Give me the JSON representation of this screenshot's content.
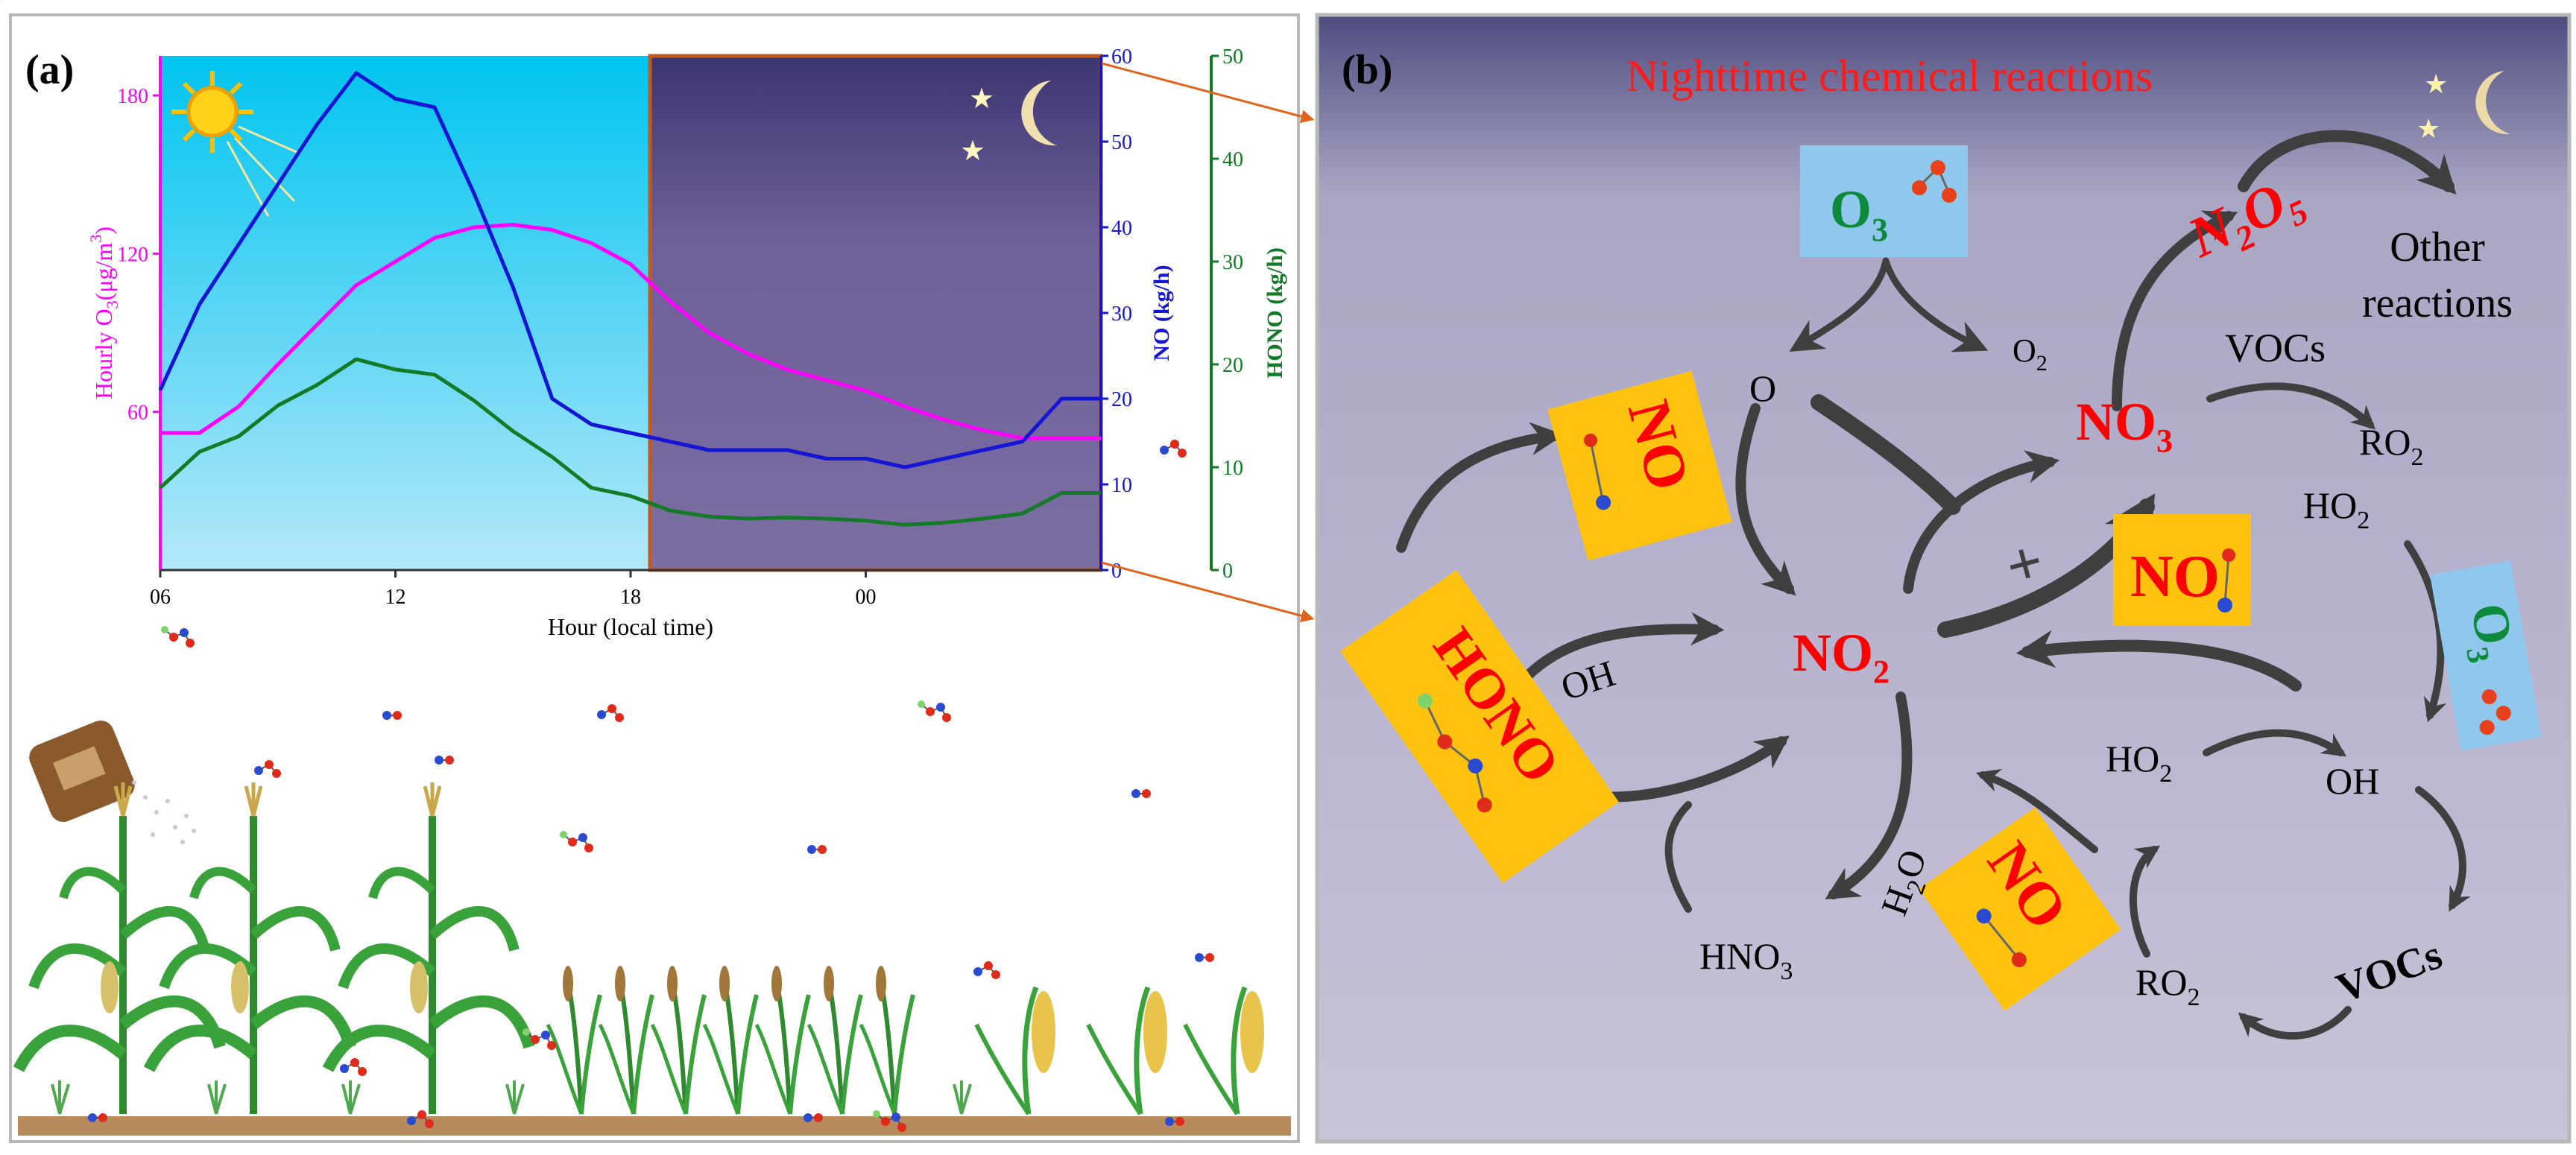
{
  "panel_a": {
    "label": "(a)",
    "chart_data": {
      "type": "line",
      "x": [
        "06",
        "07",
        "08",
        "09",
        "10",
        "11",
        "12",
        "13",
        "14",
        "15",
        "16",
        "17",
        "18",
        "19",
        "20",
        "21",
        "22",
        "23",
        "00",
        "01",
        "02",
        "03",
        "04",
        "05"
      ],
      "xticks": [
        "06",
        "12",
        "18",
        "00"
      ],
      "xlabel": "Hour (local time)",
      "series": [
        {
          "name": "Hourly O3",
          "axis": "left",
          "color": "#ff00ff",
          "values": [
            52,
            52,
            62,
            78,
            93,
            108,
            117,
            126,
            130,
            131,
            129,
            124,
            116,
            102,
            90,
            82,
            76,
            72,
            68,
            62,
            57,
            53,
            50,
            50
          ]
        },
        {
          "name": "NO",
          "axis": "right1",
          "color": "#1515d6",
          "values": [
            21,
            31,
            38,
            45,
            52,
            58,
            55,
            54,
            44,
            33,
            20,
            17,
            16,
            15,
            14,
            14,
            14,
            13,
            13,
            12,
            13,
            14,
            15,
            20
          ]
        },
        {
          "name": "HONO",
          "axis": "right2",
          "color": "#137a26",
          "values": [
            8,
            11.5,
            13,
            16,
            18,
            20.5,
            19.5,
            19,
            16.5,
            13.5,
            11,
            8,
            7.2,
            5.8,
            5.2,
            5,
            5.1,
            5.0,
            4.8,
            4.4,
            4.6,
            5,
            5.5,
            7.5
          ]
        }
      ],
      "axes": {
        "left": {
          "label": "Hourly O3 (μg/m3)",
          "min": 0,
          "max": 195,
          "ticks": [
            "60",
            "120",
            "180"
          ],
          "color": "#ff00ff"
        },
        "right1": {
          "label": "NO (kg/h)",
          "min": 0,
          "max": 60,
          "ticks": [
            "0",
            "10",
            "20",
            "30",
            "40",
            "50",
            "60"
          ],
          "color": "#1515d6"
        },
        "right2": {
          "label": "HONO (kg/h)",
          "min": 0,
          "max": 50,
          "ticks": [
            "0",
            "10",
            "20",
            "30",
            "40",
            "50"
          ],
          "color": "#137a26"
        }
      }
    }
  },
  "panel_b": {
    "label": "(b)",
    "title": "Nighttime chemical  reactions",
    "species": {
      "o3_top": "O",
      "o3_top_sub": "3",
      "n2o5": "N",
      "n2o5_sub1": "2",
      "n2o5_o": "O",
      "n2o5_sub2": "5",
      "other_reactions_1": "Other",
      "other_reactions_2": "reactions",
      "o_atom": "O",
      "o2": "O",
      "o2_sub": "2",
      "vocs_top": "VOCs",
      "no3": "NO",
      "no3_sub": "3",
      "ro2_right": "RO",
      "ro2_right_sub": "2",
      "ho2_right": "HO",
      "ho2_right_sub": "2",
      "no_box_upper": "NO",
      "hono": "HONO",
      "oh_left": "OH",
      "no2": "NO",
      "no2_sub": "2",
      "no_box_right": "NO",
      "o3_side": "O",
      "o3_side_sub": "3",
      "plus": "+",
      "ho2_bottom": "HO",
      "ho2_bottom_sub": "2",
      "oh_right": "OH",
      "h2o_h": "H",
      "h2o_sub": "2",
      "h2o_o": "O",
      "no_box_bottom": "NO",
      "hno3": "HNO",
      "hno3_sub": "3",
      "ro2_bottom": "RO",
      "ro2_bottom_sub": "2",
      "vocs_bottom": "VOCs"
    }
  },
  "colors": {
    "accent_red": "#ff0000",
    "o3_green": "#0e8a3c",
    "orange_box": "#ffc20e",
    "blue_box": "#8fc8ec",
    "arrow": "#404040"
  }
}
